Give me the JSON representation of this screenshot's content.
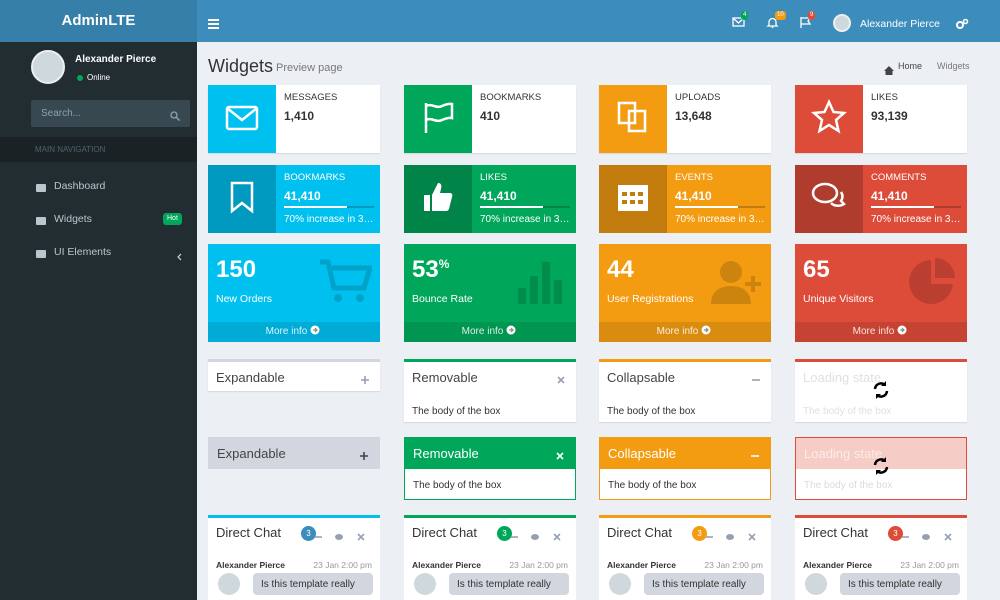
{
  "header": {
    "brand": "AdminLTE",
    "badges": [
      "4",
      "10",
      "9"
    ],
    "user": "Alexander Pierce"
  },
  "sidebar": {
    "user": "Alexander Pierce",
    "status": "Online",
    "search": "Search...",
    "nav_header": "MAIN NAVIGATION",
    "items": [
      {
        "label": "Dashboard"
      },
      {
        "label": "Widgets",
        "badge": "Hot"
      },
      {
        "label": "UI Elements"
      }
    ]
  },
  "content_header": {
    "title": "Widgets",
    "subtitle": "Preview page",
    "breadcrumb": [
      "Home",
      "Widgets"
    ]
  },
  "info_boxes": [
    {
      "label": "MESSAGES",
      "value": "1,410"
    },
    {
      "label": "BOOKMARKS",
      "value": "410"
    },
    {
      "label": "UPLOADS",
      "value": "13,648"
    },
    {
      "label": "LIKES",
      "value": "93,139"
    }
  ],
  "info_boxes_progress": [
    {
      "label": "BOOKMARKS",
      "value": "41,410",
      "description": "70% increase in 3…"
    },
    {
      "label": "LIKES",
      "value": "41,410",
      "description": "70% increase in 3…"
    },
    {
      "label": "EVENTS",
      "value": "41,410",
      "description": "70% increase in 3…"
    },
    {
      "label": "COMMENTS",
      "value": "41,410",
      "description": "70% increase in 3…"
    }
  ],
  "small_boxes": [
    {
      "value": "150",
      "label": "New Orders",
      "footer": "More info"
    },
    {
      "value": "53",
      "sup": "%",
      "label": "Bounce Rate",
      "footer": "More info"
    },
    {
      "value": "44",
      "label": "User Registrations",
      "footer": "More info"
    },
    {
      "value": "65",
      "label": "Unique Visitors",
      "footer": "More info"
    }
  ],
  "boxes": [
    {
      "title": "Expandable"
    },
    {
      "title": "Removable",
      "body": "The body of the box"
    },
    {
      "title": "Collapsable",
      "body": "The body of the box"
    },
    {
      "title": "Loading state",
      "body": "The body of the box"
    }
  ],
  "solid_boxes": [
    {
      "title": "Expandable"
    },
    {
      "title": "Removable",
      "body": "The body of the box"
    },
    {
      "title": "Collapsable",
      "body": "The body of the box"
    },
    {
      "title": "Loading state",
      "body": "The body of the box"
    }
  ],
  "chats": [
    {
      "title": "Direct Chat",
      "badge": "3",
      "name": "Alexander Pierce",
      "time": "23 Jan 2:00 pm",
      "message": "Is this template really"
    },
    {
      "title": "Direct Chat",
      "badge": "3",
      "name": "Alexander Pierce",
      "time": "23 Jan 2:00 pm",
      "message": "Is this template really"
    },
    {
      "title": "Direct Chat",
      "badge": "3",
      "name": "Alexander Pierce",
      "time": "23 Jan 2:00 pm",
      "message": "Is this template really"
    },
    {
      "title": "Direct Chat",
      "badge": "3",
      "name": "Alexander Pierce",
      "time": "23 Jan 2:00 pm",
      "message": "Is this template really"
    }
  ]
}
